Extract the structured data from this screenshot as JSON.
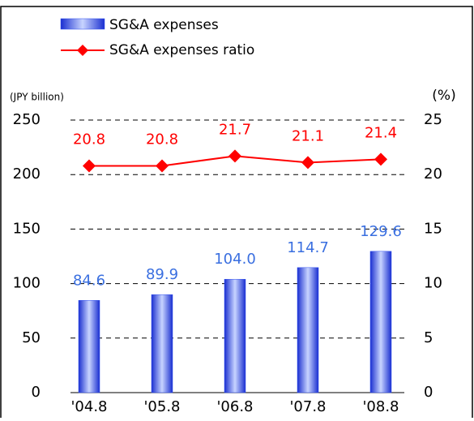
{
  "chart_data": {
    "type": "bar-line",
    "y_label": "(JPY billion)",
    "y2_label": "(%)",
    "categories": [
      "'04.8",
      "'05.8",
      "'06.8",
      "'07.8",
      "'08.8"
    ],
    "series": [
      {
        "name": "SG&A expenses",
        "type": "bar",
        "color": "#2f4ff0",
        "values": [
          84.6,
          89.9,
          104.0,
          114.7,
          129.6
        ],
        "value_labels": [
          "84.6",
          "89.9",
          "104.0",
          "114.7",
          "129.6"
        ],
        "label_color": "#3a6fe0"
      },
      {
        "name": "SG&A expenses ratio",
        "type": "line",
        "axis": "y2",
        "color": "#ff0000",
        "values": [
          20.8,
          20.8,
          21.7,
          21.1,
          21.4
        ]
      }
    ],
    "ylim": [
      0,
      250
    ],
    "yticks": [
      0,
      50,
      100,
      150,
      200,
      250
    ],
    "y2lim": [
      0,
      25
    ],
    "y2ticks": [
      0,
      5,
      10,
      15,
      20,
      25
    ],
    "grid": true
  }
}
